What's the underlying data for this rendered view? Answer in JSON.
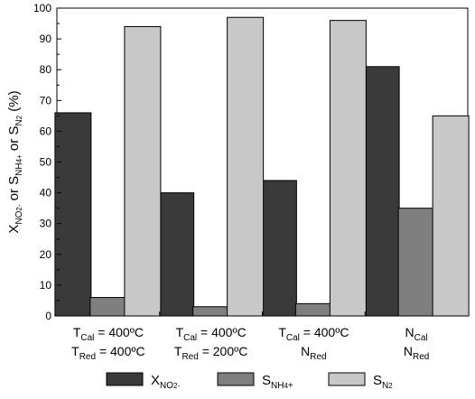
{
  "chart_data": {
    "type": "bar",
    "ylim": [
      0,
      100
    ],
    "yticks": [
      0,
      10,
      20,
      30,
      40,
      50,
      60,
      70,
      80,
      90,
      100
    ],
    "grid": false,
    "legend_position": "bottom",
    "ylabel": {
      "parts": [
        {
          "t": "X"
        },
        {
          "t": "NO",
          "sub": true
        },
        {
          "t": "2",
          "sub": true,
          "small": true
        },
        {
          "t": "-",
          "sub": true,
          "small": true
        },
        {
          "t": " or S"
        },
        {
          "t": "NH",
          "sub": true
        },
        {
          "t": "4",
          "sub": true,
          "small": true
        },
        {
          "t": "+",
          "sub": true,
          "small": true
        },
        {
          "t": " or S"
        },
        {
          "t": "N",
          "sub": true
        },
        {
          "t": "2",
          "sub": true,
          "small": true
        },
        {
          "t": " (%)"
        }
      ]
    },
    "categories": [
      {
        "lines": [
          [
            {
              "t": "T"
            },
            {
              "t": "Cal",
              "sub": true
            },
            {
              "t": " = 400ºC"
            }
          ],
          [
            {
              "t": "T"
            },
            {
              "t": "Red",
              "sub": true
            },
            {
              "t": " = 400ºC"
            }
          ]
        ]
      },
      {
        "lines": [
          [
            {
              "t": "T"
            },
            {
              "t": "Cal",
              "sub": true
            },
            {
              "t": " = 400ºC"
            }
          ],
          [
            {
              "t": "T"
            },
            {
              "t": "Red",
              "sub": true
            },
            {
              "t": " = 200ºC"
            }
          ]
        ]
      },
      {
        "lines": [
          [
            {
              "t": "T"
            },
            {
              "t": "Cal",
              "sub": true
            },
            {
              "t": " = 400ºC"
            }
          ],
          [
            {
              "t": "N"
            },
            {
              "t": "Red",
              "sub": true
            }
          ]
        ]
      },
      {
        "lines": [
          [
            {
              "t": "N"
            },
            {
              "t": "Cal",
              "sub": true
            }
          ],
          [
            {
              "t": "N"
            },
            {
              "t": "Red",
              "sub": true
            }
          ]
        ]
      }
    ],
    "series": [
      {
        "key": "x_no2",
        "color": "#3a3a3a",
        "values": [
          66,
          40,
          44,
          81
        ],
        "legend": [
          {
            "t": "X"
          },
          {
            "t": "NO",
            "sub": true
          },
          {
            "t": "2",
            "sub": true,
            "small": true
          },
          {
            "t": "-",
            "sub": true,
            "small": true
          }
        ]
      },
      {
        "key": "s_nh4",
        "color": "#7f7f7f",
        "values": [
          6,
          3,
          4,
          35
        ],
        "legend": [
          {
            "t": "S"
          },
          {
            "t": "NH",
            "sub": true
          },
          {
            "t": "4",
            "sub": true,
            "small": true
          },
          {
            "t": "+",
            "sub": true
          }
        ]
      },
      {
        "key": "s_n2",
        "color": "#c8c8c8",
        "values": [
          94,
          97,
          96,
          65
        ],
        "legend": [
          {
            "t": "S"
          },
          {
            "t": "N",
            "sub": true
          },
          {
            "t": "2",
            "sub": true,
            "small": true
          }
        ]
      }
    ]
  }
}
